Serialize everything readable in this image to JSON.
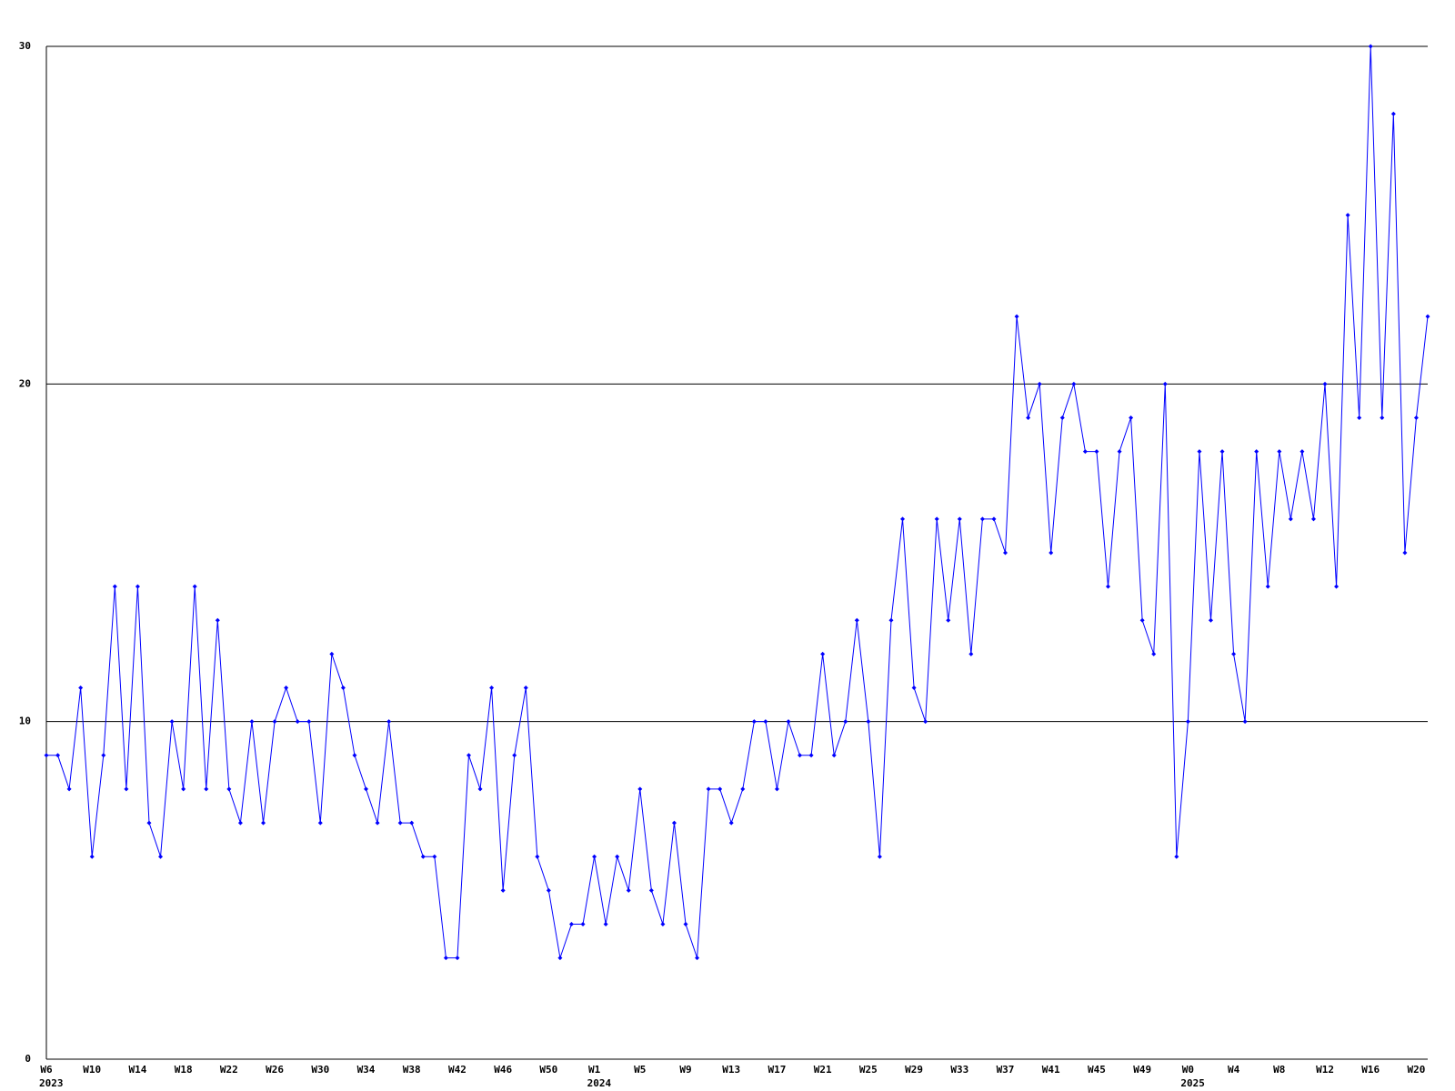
{
  "chart_data": {
    "type": "line",
    "categories": [
      "W6",
      null,
      null,
      null,
      "W10",
      null,
      null,
      null,
      "W14",
      null,
      null,
      null,
      "W18",
      null,
      null,
      null,
      "W22",
      null,
      null,
      null,
      "W26",
      null,
      null,
      null,
      "W30",
      null,
      null,
      null,
      "W34",
      null,
      null,
      null,
      "W38",
      null,
      null,
      null,
      "W42",
      null,
      null,
      null,
      "W46",
      null,
      null,
      null,
      "W50",
      null,
      null,
      null,
      "W1",
      null,
      null,
      null,
      "W5",
      null,
      null,
      null,
      "W9",
      null,
      null,
      null,
      "W13",
      null,
      null,
      null,
      "W17",
      null,
      null,
      null,
      "W21",
      null,
      null,
      null,
      "W25",
      null,
      null,
      null,
      "W29",
      null,
      null,
      null,
      "W33",
      null,
      null,
      null,
      "W37",
      null,
      null,
      null,
      "W41",
      null,
      null,
      null,
      "W45",
      null,
      null,
      null,
      "W49",
      null,
      null,
      null,
      "W0",
      null,
      null,
      null,
      "W4",
      null,
      null,
      null,
      "W8",
      null,
      null,
      null,
      "W12",
      null,
      null,
      null,
      "W16",
      null,
      null,
      null,
      "W20",
      null
    ],
    "year_labels": [
      {
        "at": 0,
        "label": "2023"
      },
      {
        "at": 48,
        "label": "2024"
      },
      {
        "at": 100,
        "label": "2025"
      }
    ],
    "series": [
      {
        "color": "#0000ff",
        "values": [
          9,
          9,
          8,
          11,
          6,
          9,
          14,
          8,
          14,
          7,
          6,
          10,
          8,
          14,
          8,
          13,
          8,
          7,
          10,
          7,
          10,
          11,
          10,
          10,
          7,
          12,
          11,
          9,
          8,
          7,
          10,
          7,
          7,
          6,
          6,
          3,
          3,
          9,
          8,
          11,
          5,
          9,
          11,
          6,
          5,
          3,
          4,
          4,
          6,
          4,
          6,
          5,
          8,
          5,
          4,
          7,
          4,
          3,
          8,
          8,
          7,
          8,
          10,
          10,
          8,
          10,
          9,
          9,
          12,
          9,
          10,
          13,
          10,
          6,
          13,
          16,
          11,
          10,
          16,
          13,
          16,
          12,
          16,
          16,
          15,
          22,
          19,
          20,
          15,
          19,
          20,
          18,
          18,
          14,
          18,
          19,
          13,
          12,
          20,
          6,
          10,
          18,
          13,
          18,
          12,
          10,
          18,
          14,
          18,
          16,
          18,
          16,
          20,
          14,
          25,
          19,
          30,
          19,
          28,
          15,
          19,
          22
        ]
      }
    ],
    "ylim": [
      0,
      30
    ],
    "yticks": [
      0,
      10,
      20,
      30
    ],
    "grid": true
  }
}
